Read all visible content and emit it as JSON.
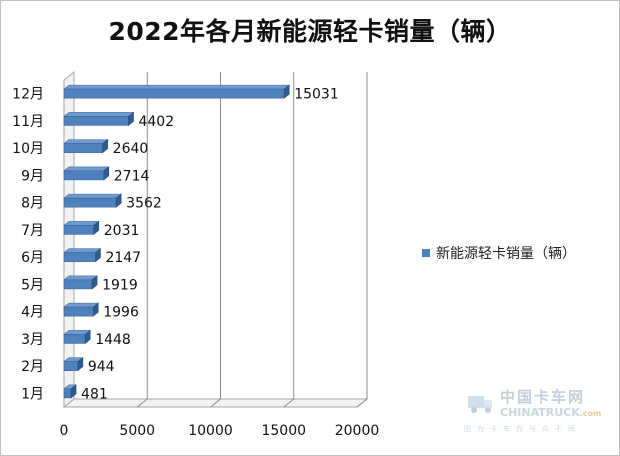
{
  "chart_data": {
    "type": "bar",
    "orientation": "horizontal",
    "title": "2022年各月新能源轻卡销量（辆）",
    "categories": [
      "1月",
      "2月",
      "3月",
      "4月",
      "5月",
      "6月",
      "7月",
      "8月",
      "9月",
      "10月",
      "11月",
      "12月"
    ],
    "series": [
      {
        "name": "新能源轻卡销量（辆）",
        "values": [
          481,
          944,
          1448,
          1996,
          1919,
          2147,
          2031,
          3562,
          2714,
          2640,
          4402,
          15031
        ]
      }
    ],
    "xlim": [
      0,
      20000
    ],
    "xticks": [
      0,
      5000,
      10000,
      15000,
      20000
    ],
    "grid": true,
    "legend": "right",
    "bar_color": "#4f81bd",
    "style": "3d"
  },
  "watermark": {
    "name_cn": "中国卡车网",
    "name_en": "CHINATRUCK",
    "domain_suffix": ".com",
    "slogan": "因为卡车而与众不同"
  }
}
